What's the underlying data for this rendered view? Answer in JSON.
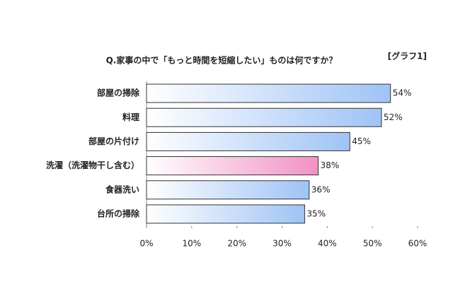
{
  "chart_data": {
    "type": "bar",
    "orientation": "horizontal",
    "title": "Q.家事の中で「もっと時間を短縮したい」ものは何ですか？",
    "label": "[グラフ1]",
    "categories": [
      "部屋の掃除",
      "料理",
      "部屋の片付け",
      "洗濯（洗濯物干し含む）",
      "食器洗い",
      "台所の掃除"
    ],
    "values": [
      54,
      52,
      45,
      38,
      36,
      35
    ],
    "value_labels": [
      "54%",
      "52%",
      "45%",
      "38%",
      "36%",
      "35%"
    ],
    "colors": [
      "#9fc3f5",
      "#9fc3f5",
      "#9fc3f5",
      "#f291c4",
      "#9fc3f5",
      "#9fc3f5"
    ],
    "xlim": [
      0,
      60
    ],
    "xticks": [
      {
        "value": 0,
        "label": "0%"
      },
      {
        "value": 10,
        "label": "10%"
      },
      {
        "value": 20,
        "label": "20%"
      },
      {
        "value": 30,
        "label": "30%"
      },
      {
        "value": 40,
        "label": "40%"
      },
      {
        "value": 50,
        "label": "50%"
      },
      {
        "value": 60,
        "label": "60%"
      }
    ]
  }
}
